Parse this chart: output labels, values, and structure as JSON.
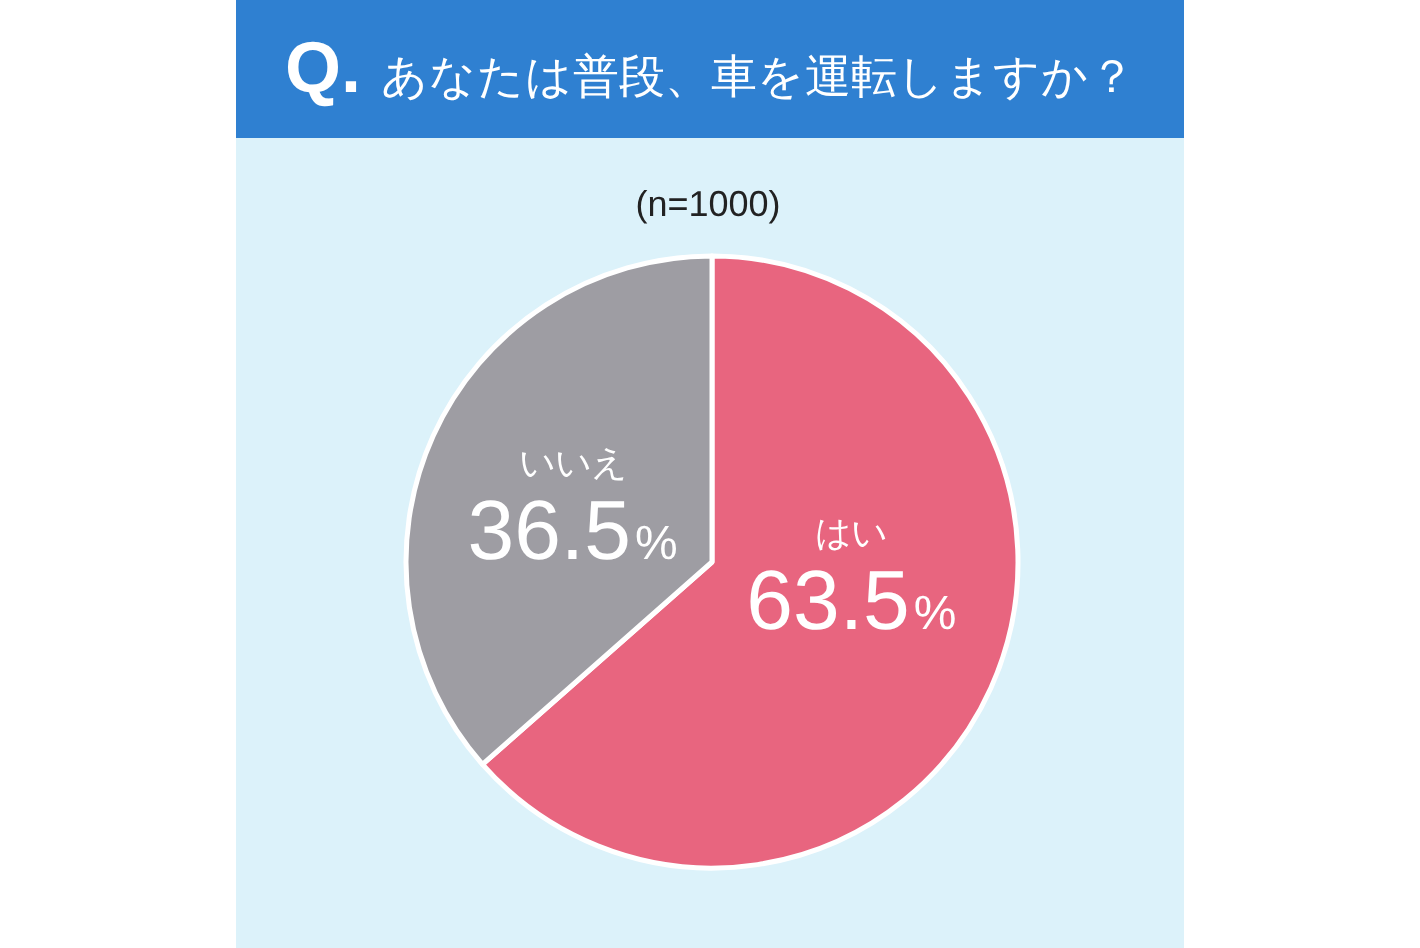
{
  "chart_data": {
    "type": "pie",
    "title": "Q. あなたは普段、車を運転しますか？",
    "subtitle": "(n=1000)",
    "categories": [
      "はい",
      "いいえ"
    ],
    "values": [
      63.5,
      36.5
    ],
    "colors": [
      "#e8657f",
      "#9e9da3"
    ],
    "value_labels": [
      "63.5%",
      "36.5%"
    ]
  }
}
